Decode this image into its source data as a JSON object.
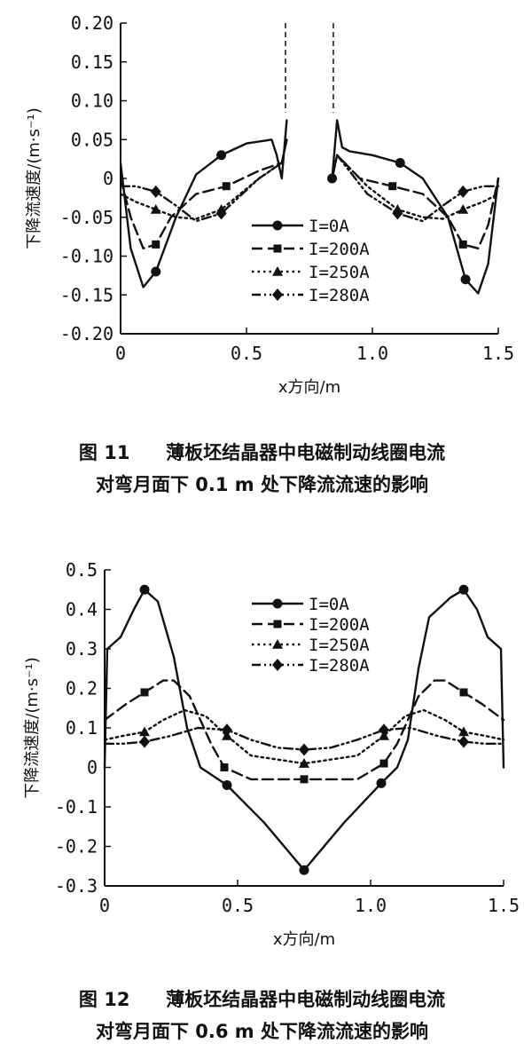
{
  "chart_data": [
    {
      "type": "line",
      "figure_label": "图 11",
      "caption_line1": "薄板坯结晶器中电磁制动线圈电流",
      "caption_line2": "对弯月面下 0.1 m 处下降流流速的影响",
      "xlabel": "x方向/m",
      "ylabel": "下降流速度/(m·s⁻¹)",
      "xlim": [
        0,
        1.5
      ],
      "ylim": [
        -0.2,
        0.2
      ],
      "xticks": [
        "0",
        "0.5",
        "1.0",
        "1.5"
      ],
      "yticks": [
        "0.20",
        "0.15",
        "0.10",
        "0.05",
        "0",
        "-0.05",
        "-0.10",
        "-0.15",
        "-0.20"
      ],
      "legend_position": "center",
      "annotations": [
        "nozzle outline (dashed) at x≈0.65 and x≈0.85"
      ],
      "series": [
        {
          "name": "I=0A",
          "marker": "circle",
          "dash": "solid",
          "x": [
            0,
            0.04,
            0.09,
            0.14,
            0.22,
            0.3,
            0.4,
            0.5,
            0.6,
            0.62,
            0.64,
            0.66,
            0.84,
            0.86,
            0.88,
            0.91,
            1.0,
            1.11,
            1.2,
            1.3,
            1.37,
            1.42,
            1.46,
            1.5
          ],
          "y": [
            0.02,
            -0.09,
            -0.14,
            -0.12,
            -0.05,
            0.005,
            0.03,
            0.045,
            0.05,
            0.03,
            0.0,
            0.075,
            0.0,
            0.075,
            0.04,
            0.035,
            0.03,
            0.02,
            0.0,
            -0.05,
            -0.13,
            -0.148,
            -0.11,
            0.0
          ],
          "marked": [
            [
              0.14,
              -0.12
            ],
            [
              0.4,
              0.03
            ],
            [
              0.84,
              0.0
            ],
            [
              1.11,
              0.02
            ],
            [
              1.37,
              -0.13
            ]
          ]
        },
        {
          "name": "I=200A",
          "marker": "square",
          "dash": "dashed",
          "x": [
            0,
            0.04,
            0.09,
            0.14,
            0.2,
            0.3,
            0.42,
            0.55,
            0.64,
            0.66,
            0.84,
            0.86,
            0.95,
            1.08,
            1.2,
            1.3,
            1.36,
            1.42,
            1.46,
            1.5
          ],
          "y": [
            0.0,
            -0.05,
            -0.09,
            -0.085,
            -0.05,
            -0.02,
            -0.01,
            0.01,
            0.02,
            0.05,
            0.0,
            0.03,
            0.0,
            -0.01,
            -0.02,
            -0.05,
            -0.085,
            -0.09,
            -0.06,
            0.0
          ],
          "marked": [
            [
              0.14,
              -0.085
            ],
            [
              0.42,
              -0.01
            ],
            [
              1.08,
              -0.01
            ],
            [
              1.36,
              -0.085
            ]
          ]
        },
        {
          "name": "I=250A",
          "marker": "triangle",
          "dash": "dotted",
          "x": [
            0,
            0.06,
            0.14,
            0.22,
            0.3,
            0.4,
            0.55,
            0.64,
            0.66,
            0.84,
            0.86,
            0.98,
            1.1,
            1.2,
            1.28,
            1.36,
            1.44,
            1.5
          ],
          "y": [
            -0.02,
            -0.03,
            -0.04,
            -0.05,
            -0.052,
            -0.04,
            0.0,
            0.02,
            0.05,
            0.0,
            0.03,
            -0.01,
            -0.04,
            -0.05,
            -0.052,
            -0.04,
            -0.03,
            -0.02
          ],
          "marked": [
            [
              0.14,
              -0.04
            ],
            [
              0.4,
              -0.04
            ],
            [
              1.1,
              -0.04
            ],
            [
              1.36,
              -0.04
            ]
          ]
        },
        {
          "name": "I=280A",
          "marker": "diamond",
          "dash": "dashdot",
          "x": [
            0,
            0.06,
            0.14,
            0.22,
            0.3,
            0.4,
            0.55,
            0.64,
            0.66,
            0.84,
            0.86,
            0.98,
            1.1,
            1.2,
            1.28,
            1.36,
            1.44,
            1.5
          ],
          "y": [
            -0.01,
            -0.01,
            -0.017,
            -0.035,
            -0.055,
            -0.045,
            0.0,
            0.02,
            0.05,
            0.0,
            0.03,
            -0.02,
            -0.045,
            -0.055,
            -0.035,
            -0.017,
            -0.01,
            -0.01
          ],
          "marked": [
            [
              0.14,
              -0.017
            ],
            [
              0.4,
              -0.045
            ],
            [
              1.1,
              -0.045
            ],
            [
              1.36,
              -0.017
            ]
          ]
        }
      ]
    },
    {
      "type": "line",
      "figure_label": "图 12",
      "caption_line1": "薄板坯结晶器中电磁制动线圈电流",
      "caption_line2": "对弯月面下 0.6 m 处下降流流速的影响",
      "xlabel": "x方向/m",
      "ylabel": "下降流速度/(m·s⁻¹)",
      "xlim": [
        0,
        1.5
      ],
      "ylim": [
        -0.3,
        0.5
      ],
      "xticks": [
        "0",
        "0.5",
        "1.0",
        "1.5"
      ],
      "yticks": [
        "0.5",
        "0.4",
        "0.3",
        "0.2",
        "0.1",
        "0",
        "-0.1",
        "-0.2",
        "-0.3"
      ],
      "legend_position": "top-right",
      "series": [
        {
          "name": "I=0A",
          "marker": "circle",
          "dash": "solid",
          "x": [
            0,
            0.01,
            0.06,
            0.11,
            0.15,
            0.2,
            0.26,
            0.31,
            0.36,
            0.46,
            0.6,
            0.75,
            0.9,
            1.04,
            1.1,
            1.14,
            1.18,
            1.22,
            1.3,
            1.35,
            1.4,
            1.44,
            1.49,
            1.5
          ],
          "y": [
            0.0,
            0.3,
            0.33,
            0.4,
            0.45,
            0.42,
            0.28,
            0.1,
            0.0,
            -0.045,
            -0.14,
            -0.26,
            -0.14,
            -0.04,
            0.0,
            0.07,
            0.25,
            0.38,
            0.43,
            0.45,
            0.4,
            0.33,
            0.3,
            0.0
          ],
          "marked": [
            [
              0.15,
              0.45
            ],
            [
              0.46,
              -0.045
            ],
            [
              0.75,
              -0.26
            ],
            [
              1.04,
              -0.04
            ],
            [
              1.35,
              0.45
            ]
          ]
        },
        {
          "name": "I=200A",
          "marker": "square",
          "dash": "dashed",
          "x": [
            0,
            0.08,
            0.15,
            0.22,
            0.26,
            0.32,
            0.4,
            0.45,
            0.55,
            0.75,
            0.95,
            1.05,
            1.1,
            1.18,
            1.24,
            1.28,
            1.35,
            1.42,
            1.5
          ],
          "y": [
            0.12,
            0.16,
            0.19,
            0.22,
            0.22,
            0.18,
            0.06,
            0.0,
            -0.03,
            -0.03,
            -0.03,
            0.01,
            0.06,
            0.18,
            0.22,
            0.22,
            0.19,
            0.16,
            0.12
          ],
          "marked": [
            [
              0.15,
              0.19
            ],
            [
              0.45,
              0.0
            ],
            [
              0.75,
              -0.03
            ],
            [
              1.05,
              0.01
            ],
            [
              1.35,
              0.19
            ]
          ]
        },
        {
          "name": "I=250A",
          "marker": "triangle",
          "dash": "dotted",
          "x": [
            0,
            0.07,
            0.15,
            0.22,
            0.3,
            0.38,
            0.46,
            0.55,
            0.75,
            0.95,
            1.05,
            1.13,
            1.2,
            1.28,
            1.35,
            1.43,
            1.5
          ],
          "y": [
            0.07,
            0.08,
            0.09,
            0.12,
            0.145,
            0.13,
            0.08,
            0.03,
            0.01,
            0.03,
            0.08,
            0.13,
            0.145,
            0.12,
            0.09,
            0.08,
            0.07
          ],
          "marked": [
            [
              0.15,
              0.09
            ],
            [
              0.46,
              0.08
            ],
            [
              0.75,
              0.01
            ],
            [
              1.05,
              0.08
            ],
            [
              1.35,
              0.09
            ]
          ]
        },
        {
          "name": "I=280A",
          "marker": "diamond",
          "dash": "dashdot",
          "x": [
            0,
            0.07,
            0.15,
            0.25,
            0.35,
            0.46,
            0.55,
            0.65,
            0.75,
            0.85,
            0.95,
            1.05,
            1.15,
            1.25,
            1.35,
            1.43,
            1.5
          ],
          "y": [
            0.06,
            0.06,
            0.065,
            0.08,
            0.1,
            0.095,
            0.07,
            0.05,
            0.045,
            0.05,
            0.07,
            0.095,
            0.1,
            0.08,
            0.065,
            0.06,
            0.06
          ],
          "marked": [
            [
              0.15,
              0.065
            ],
            [
              0.46,
              0.095
            ],
            [
              0.75,
              0.045
            ],
            [
              1.05,
              0.095
            ],
            [
              1.35,
              0.065
            ]
          ]
        }
      ]
    }
  ]
}
